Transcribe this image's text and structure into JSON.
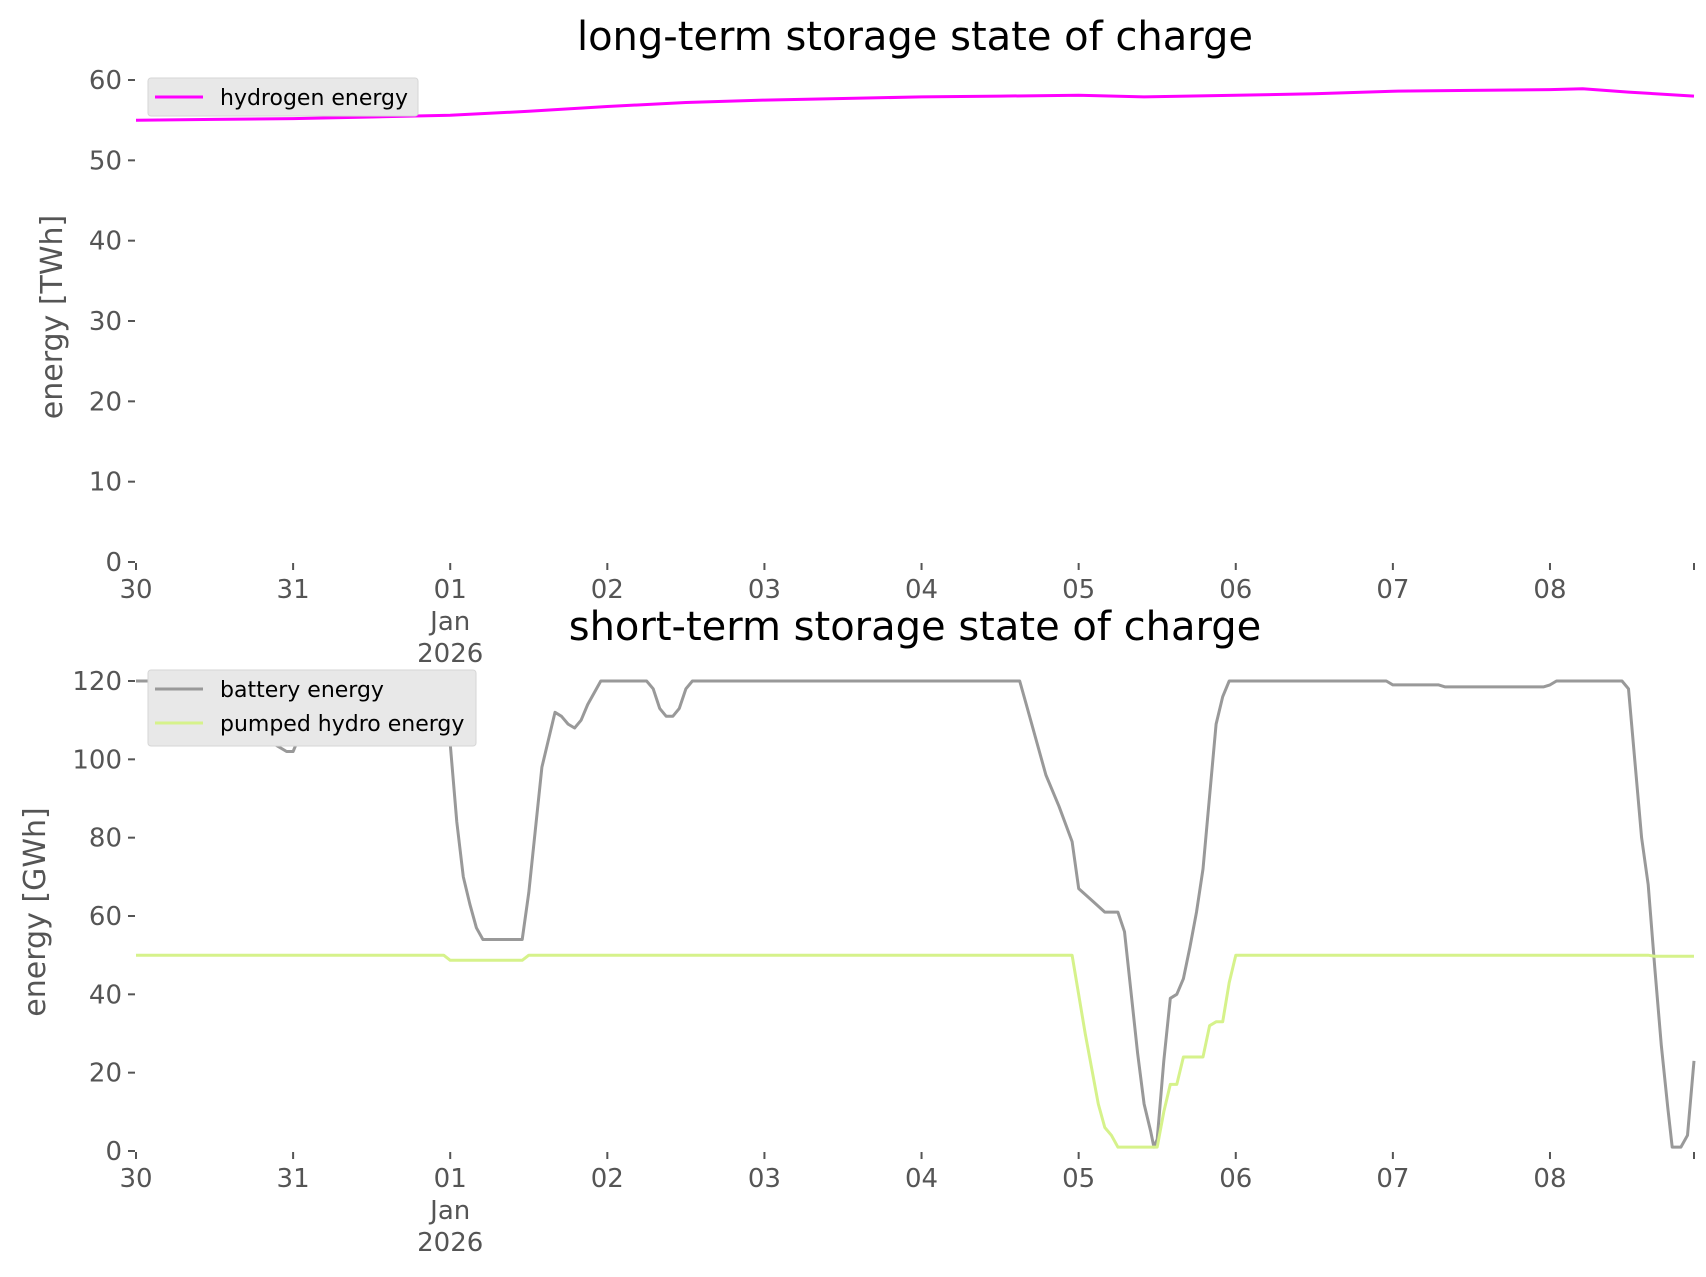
{
  "chart_data": [
    {
      "type": "line",
      "title": "long-term storage state of charge",
      "xlabel": "",
      "ylabel": "energy [TWh]",
      "ylim": [
        0,
        60
      ],
      "yticks": [
        0,
        10,
        20,
        30,
        40,
        50,
        60
      ],
      "xlim": [
        "2025-12-30",
        "2026-01-08T22:00"
      ],
      "x_ticks": [
        {
          "date": "2025-12-30",
          "label": "30",
          "sublabel": ""
        },
        {
          "date": "2025-12-31",
          "label": "31",
          "sublabel": ""
        },
        {
          "date": "2026-01-01",
          "label": "01",
          "sublabel": "Jan\n2026"
        },
        {
          "date": "2026-01-02",
          "label": "02",
          "sublabel": ""
        },
        {
          "date": "2026-01-03",
          "label": "03",
          "sublabel": ""
        },
        {
          "date": "2026-01-04",
          "label": "04",
          "sublabel": ""
        },
        {
          "date": "2026-01-05",
          "label": "05",
          "sublabel": ""
        },
        {
          "date": "2026-01-06",
          "label": "06",
          "sublabel": ""
        },
        {
          "date": "2026-01-07",
          "label": "07",
          "sublabel": ""
        },
        {
          "date": "2026-01-08",
          "label": "08",
          "sublabel": ""
        }
      ],
      "grid": false,
      "legend_placement": "top-left",
      "series": [
        {
          "name": "hydrogen energy",
          "color": "#ff00ff",
          "points": [
            [
              "2025-12-30T00:00",
              55.0
            ],
            [
              "2025-12-30T12:00",
              55.1
            ],
            [
              "2025-12-31T00:00",
              55.2
            ],
            [
              "2025-12-31T12:00",
              55.4
            ],
            [
              "2026-01-01T00:00",
              55.6
            ],
            [
              "2026-01-01T12:00",
              56.1
            ],
            [
              "2026-01-02T00:00",
              56.7
            ],
            [
              "2026-01-02T12:00",
              57.2
            ],
            [
              "2026-01-03T00:00",
              57.5
            ],
            [
              "2026-01-03T12:00",
              57.7
            ],
            [
              "2026-01-04T00:00",
              57.9
            ],
            [
              "2026-01-04T12:00",
              58.0
            ],
            [
              "2026-01-05T00:00",
              58.1
            ],
            [
              "2026-01-05T10:00",
              57.9
            ],
            [
              "2026-01-06T00:00",
              58.1
            ],
            [
              "2026-01-06T12:00",
              58.3
            ],
            [
              "2026-01-07T00:00",
              58.6
            ],
            [
              "2026-01-07T12:00",
              58.7
            ],
            [
              "2026-01-08T00:00",
              58.8
            ],
            [
              "2026-01-08T05:00",
              58.9
            ],
            [
              "2026-01-08T12:00",
              58.5
            ],
            [
              "2026-01-08T22:00",
              58.0
            ]
          ]
        }
      ]
    },
    {
      "type": "line",
      "title": "short-term storage state of charge",
      "xlabel": "",
      "ylabel": "energy [GWh]",
      "ylim": [
        0,
        120
      ],
      "yticks": [
        0,
        20,
        40,
        60,
        80,
        100,
        120
      ],
      "xlim": [
        "2025-12-30",
        "2026-01-08T22:00"
      ],
      "x_ticks": [
        {
          "date": "2025-12-30",
          "label": "30",
          "sublabel": ""
        },
        {
          "date": "2025-12-31",
          "label": "31",
          "sublabel": ""
        },
        {
          "date": "2026-01-01",
          "label": "01",
          "sublabel": "Jan\n2026"
        },
        {
          "date": "2026-01-02",
          "label": "02",
          "sublabel": ""
        },
        {
          "date": "2026-01-03",
          "label": "03",
          "sublabel": ""
        },
        {
          "date": "2026-01-04",
          "label": "04",
          "sublabel": ""
        },
        {
          "date": "2026-01-05",
          "label": "05",
          "sublabel": ""
        },
        {
          "date": "2026-01-06",
          "label": "06",
          "sublabel": ""
        },
        {
          "date": "2026-01-07",
          "label": "07",
          "sublabel": ""
        },
        {
          "date": "2026-01-08",
          "label": "08",
          "sublabel": ""
        }
      ],
      "grid": false,
      "legend_placement": "top-left",
      "series": [
        {
          "name": "battery energy",
          "color": "#999999",
          "points": [
            [
              "2025-12-30T00:00",
              120
            ],
            [
              "2025-12-30T16:00",
              120
            ],
            [
              "2025-12-30T19:00",
              111
            ],
            [
              "2025-12-30T21:00",
              104
            ],
            [
              "2025-12-30T23:00",
              102
            ],
            [
              "2025-12-31T00:00",
              102
            ],
            [
              "2025-12-31T01:00",
              106
            ],
            [
              "2025-12-31T12:00",
              106
            ],
            [
              "2025-12-31T20:00",
              106
            ],
            [
              "2025-12-31T23:00",
              120
            ],
            [
              "2026-01-01T00:00",
              104
            ],
            [
              "2026-01-01T01:00",
              84
            ],
            [
              "2026-01-01T02:00",
              70
            ],
            [
              "2026-01-01T03:00",
              63
            ],
            [
              "2026-01-01T04:00",
              57
            ],
            [
              "2026-01-01T05:00",
              54
            ],
            [
              "2026-01-01T11:00",
              54
            ],
            [
              "2026-01-01T12:00",
              66
            ],
            [
              "2026-01-01T14:00",
              98
            ],
            [
              "2026-01-01T16:00",
              112
            ],
            [
              "2026-01-01T17:00",
              111
            ],
            [
              "2026-01-01T18:00",
              109
            ],
            [
              "2026-01-01T19:00",
              108
            ],
            [
              "2026-01-01T20:00",
              110
            ],
            [
              "2026-01-01T21:00",
              114
            ],
            [
              "2026-01-01T23:00",
              120
            ],
            [
              "2026-01-02T06:00",
              120
            ],
            [
              "2026-01-02T07:00",
              118
            ],
            [
              "2026-01-02T08:00",
              113
            ],
            [
              "2026-01-02T09:00",
              111
            ],
            [
              "2026-01-02T10:00",
              111
            ],
            [
              "2026-01-02T11:00",
              113
            ],
            [
              "2026-01-02T12:00",
              118
            ],
            [
              "2026-01-02T13:00",
              120
            ],
            [
              "2026-01-04T15:00",
              120
            ],
            [
              "2026-01-04T16:00",
              114
            ],
            [
              "2026-01-04T19:00",
              96
            ],
            [
              "2026-01-04T21:00",
              88
            ],
            [
              "2026-01-04T23:00",
              79
            ],
            [
              "2026-01-05T00:00",
              67
            ],
            [
              "2026-01-05T02:00",
              64
            ],
            [
              "2026-01-05T04:00",
              61
            ],
            [
              "2026-01-05T06:00",
              61
            ],
            [
              "2026-01-05T07:00",
              56
            ],
            [
              "2026-01-05T09:00",
              25
            ],
            [
              "2026-01-05T10:00",
              12
            ],
            [
              "2026-01-05T11:00",
              5
            ],
            [
              "2026-01-05T11:30",
              1
            ],
            [
              "2026-01-05T12:00",
              3
            ],
            [
              "2026-01-05T13:00",
              23
            ],
            [
              "2026-01-05T14:00",
              39
            ],
            [
              "2026-01-05T15:00",
              40
            ],
            [
              "2026-01-05T16:00",
              44
            ],
            [
              "2026-01-05T17:00",
              52
            ],
            [
              "2026-01-05T18:00",
              61
            ],
            [
              "2026-01-05T19:00",
              72
            ],
            [
              "2026-01-05T21:00",
              109
            ],
            [
              "2026-01-05T22:00",
              116
            ],
            [
              "2026-01-05T23:00",
              120
            ],
            [
              "2026-01-06T23:00",
              120
            ],
            [
              "2026-01-07T00:00",
              119
            ],
            [
              "2026-01-07T07:00",
              119
            ],
            [
              "2026-01-07T08:00",
              118.5
            ],
            [
              "2026-01-07T23:00",
              118.5
            ],
            [
              "2026-01-08T00:00",
              119
            ],
            [
              "2026-01-08T01:00",
              120
            ],
            [
              "2026-01-08T11:00",
              120
            ],
            [
              "2026-01-08T12:00",
              118
            ],
            [
              "2026-01-08T14:00",
              80
            ],
            [
              "2026-01-08T15:00",
              68
            ],
            [
              "2026-01-08T16:00",
              47
            ],
            [
              "2026-01-08T17:00",
              27
            ],
            [
              "2026-01-08T18:00",
              11
            ],
            [
              "2026-01-08T18:40",
              1
            ],
            [
              "2026-01-08T20:00",
              1
            ],
            [
              "2026-01-08T21:00",
              4
            ],
            [
              "2026-01-08T22:00",
              23
            ]
          ]
        },
        {
          "name": "pumped hydro energy",
          "color": "#d6f28b",
          "points": [
            [
              "2025-12-30T00:00",
              50
            ],
            [
              "2025-12-31T23:00",
              50
            ],
            [
              "2026-01-01T00:00",
              48.7
            ],
            [
              "2026-01-01T11:00",
              48.7
            ],
            [
              "2026-01-01T12:00",
              50
            ],
            [
              "2026-01-04T23:00",
              50
            ],
            [
              "2026-01-05T01:00",
              30
            ],
            [
              "2026-01-05T03:00",
              12
            ],
            [
              "2026-01-05T04:00",
              6
            ],
            [
              "2026-01-05T05:00",
              4
            ],
            [
              "2026-01-05T06:00",
              1
            ],
            [
              "2026-01-05T11:00",
              1
            ],
            [
              "2026-01-05T12:00",
              1
            ],
            [
              "2026-01-05T13:00",
              10
            ],
            [
              "2026-01-05T14:00",
              17
            ],
            [
              "2026-01-05T15:00",
              17
            ],
            [
              "2026-01-05T16:00",
              24
            ],
            [
              "2026-01-05T19:00",
              24
            ],
            [
              "2026-01-05T20:00",
              32
            ],
            [
              "2026-01-05T21:00",
              33
            ],
            [
              "2026-01-05T22:00",
              33
            ],
            [
              "2026-01-05T23:00",
              43
            ],
            [
              "2026-01-06T00:00",
              50
            ],
            [
              "2026-01-08T15:00",
              50
            ],
            [
              "2026-01-08T16:00",
              49.7
            ],
            [
              "2026-01-08T22:00",
              49.7
            ]
          ]
        }
      ]
    }
  ]
}
